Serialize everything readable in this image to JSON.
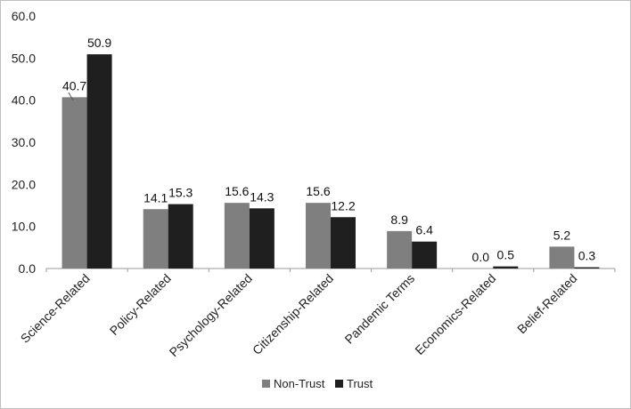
{
  "chart_data": {
    "type": "bar",
    "title": "",
    "xlabel": "",
    "ylabel": "",
    "ylim": [
      0,
      60
    ],
    "yticks": [
      "0.0",
      "10.0",
      "20.0",
      "30.0",
      "40.0",
      "50.0",
      "60.0"
    ],
    "grid": false,
    "legend_position": "bottom",
    "categories": [
      "Science-Related",
      "Policy-Related",
      "Psychology-Related",
      "Citizenship-Related",
      "Pandemic Terms",
      "Economics-Related",
      "Belief-Related"
    ],
    "series": [
      {
        "name": "Non-Trust",
        "color": "#7f7f7f",
        "values": [
          40.7,
          14.1,
          15.6,
          15.6,
          8.9,
          0.0,
          5.2
        ],
        "labels": [
          "40.7",
          "14.1",
          "15.6",
          "15.6",
          "8.9",
          "0.0",
          "5.2"
        ]
      },
      {
        "name": "Trust",
        "color": "#1f1f1f",
        "values": [
          50.9,
          15.3,
          14.3,
          12.2,
          6.4,
          0.5,
          0.3
        ],
        "labels": [
          "50.9",
          "15.3",
          "14.3",
          "12.2",
          "6.4",
          "0.5",
          "0.3"
        ]
      }
    ]
  }
}
